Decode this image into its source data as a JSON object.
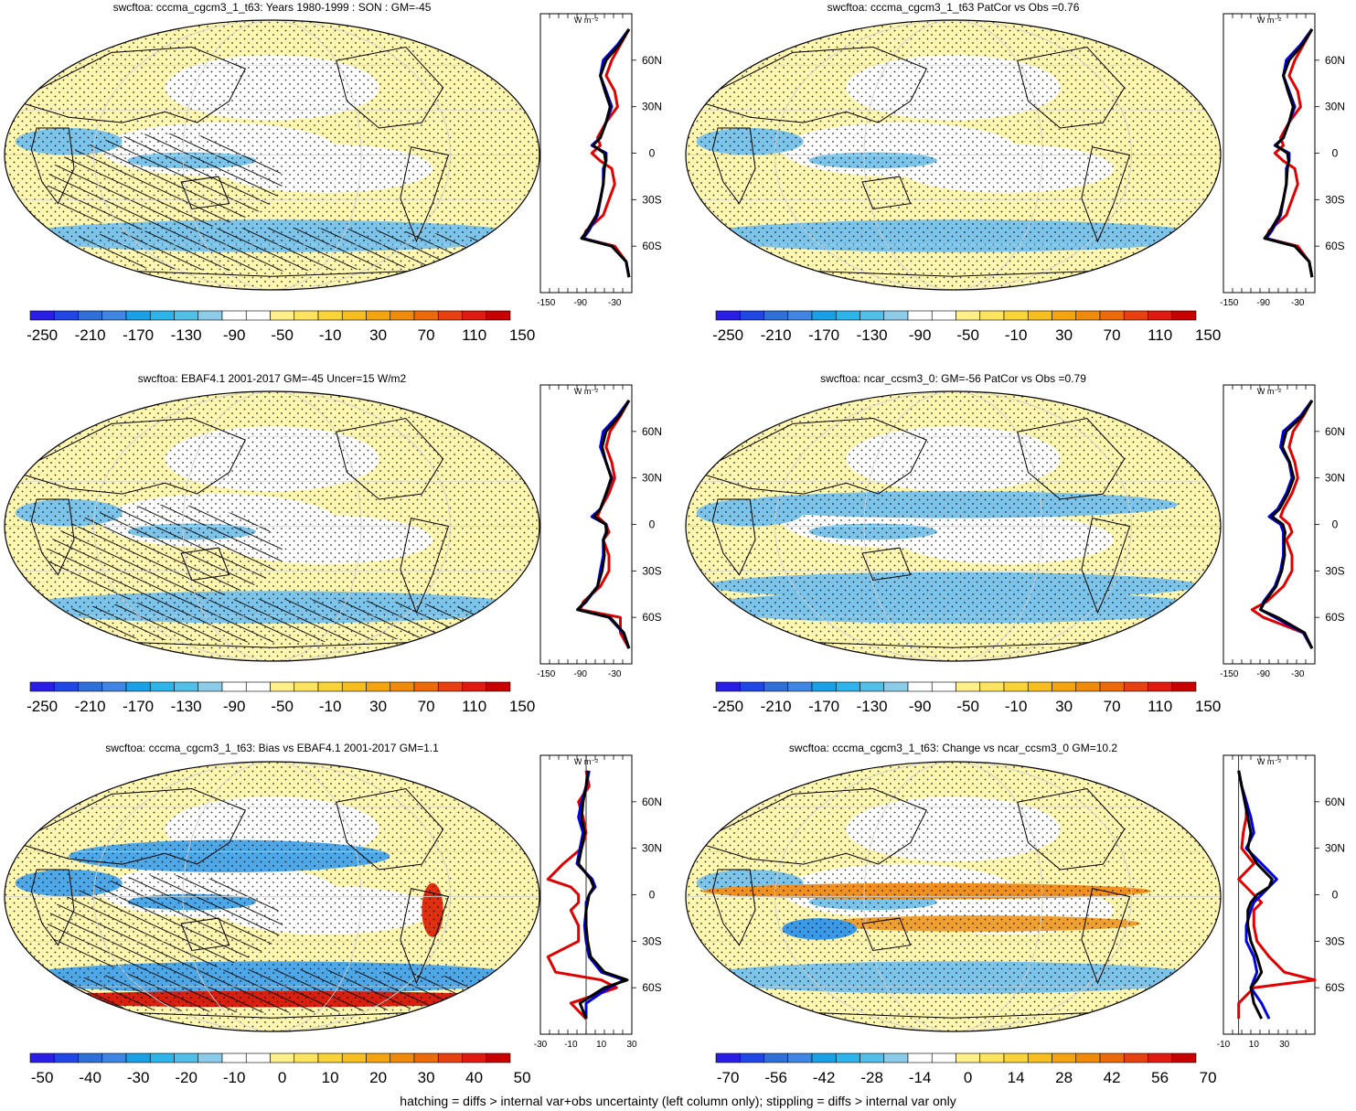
{
  "footnote": "hatching = diffs > internal var+obs uncertainty (left column only); stippling = diffs > internal var only",
  "profile_unit": "W m⁻²",
  "lat_labels": [
    "60N",
    "30N",
    "0",
    "30S",
    "60S"
  ],
  "chart_data": [
    {
      "type": "heatmap",
      "title": "swcftoa: cccma_cgcm3_1_t63: Years 1980-1999 : SON : GM=-45",
      "colorbar_labels": [
        "-250",
        "-210",
        "-170",
        "-130",
        "-90",
        "-50",
        "-10",
        "30",
        "70",
        "110",
        "150"
      ],
      "profile": {
        "x_ticks": [
          "-150",
          "-90",
          "-30"
        ],
        "xlim": [
          -160,
          0
        ],
        "zero_line": false,
        "series": [
          {
            "color": "#e00000",
            "x": [
              -5,
              -20,
              -35,
              -45,
              -30,
              -25,
              -45,
              -60,
              -55,
              -70,
              -55,
              -35,
              -30,
              -40,
              -50,
              -80,
              -85,
              -30,
              -10,
              -5
            ],
            "lat": [
              80,
              70,
              60,
              50,
              40,
              30,
              20,
              10,
              5,
              0,
              -5,
              -10,
              -20,
              -30,
              -40,
              -50,
              -55,
              -60,
              -70,
              -80
            ]
          },
          {
            "color": "#0000e0",
            "x": [
              -5,
              -25,
              -50,
              -55,
              -45,
              -35,
              -45,
              -55,
              -70,
              -45,
              -45,
              -50,
              -50,
              -55,
              -60,
              -75,
              -85,
              -35,
              -10,
              -5
            ],
            "lat": [
              80,
              70,
              60,
              50,
              40,
              30,
              20,
              10,
              5,
              0,
              -5,
              -10,
              -20,
              -30,
              -40,
              -50,
              -55,
              -60,
              -70,
              -80
            ]
          },
          {
            "color": "#000000",
            "x": [
              -5,
              -22,
              -45,
              -55,
              -47,
              -38,
              -45,
              -55,
              -68,
              -48,
              -46,
              -48,
              -50,
              -55,
              -62,
              -78,
              -88,
              -35,
              -10,
              -5
            ],
            "lat": [
              80,
              70,
              60,
              50,
              40,
              30,
              20,
              10,
              5,
              0,
              -5,
              -10,
              -20,
              -30,
              -40,
              -50,
              -55,
              -60,
              -70,
              -80
            ]
          }
        ]
      }
    },
    {
      "type": "heatmap",
      "title": "swcftoa: cccma_cgcm3_1_t63 PatCor vs Obs =0.76",
      "colorbar_labels": [
        "-250",
        "-210",
        "-170",
        "-130",
        "-90",
        "-50",
        "-10",
        "30",
        "70",
        "110",
        "150"
      ],
      "profile": {
        "x_ticks": [
          "-150",
          "-90",
          "-30"
        ],
        "xlim": [
          -160,
          0
        ],
        "zero_line": false,
        "series": [
          {
            "color": "#e00000",
            "x": [
              -5,
              -20,
              -35,
              -45,
              -30,
              -25,
              -45,
              -60,
              -55,
              -70,
              -55,
              -35,
              -30,
              -40,
              -50,
              -80,
              -85,
              -30,
              -10,
              -5
            ],
            "lat": [
              80,
              70,
              60,
              50,
              40,
              30,
              20,
              10,
              5,
              0,
              -5,
              -10,
              -20,
              -30,
              -40,
              -50,
              -55,
              -60,
              -70,
              -80
            ]
          },
          {
            "color": "#0000e0",
            "x": [
              -5,
              -25,
              -50,
              -55,
              -45,
              -35,
              -45,
              -55,
              -70,
              -45,
              -45,
              -50,
              -50,
              -55,
              -60,
              -75,
              -85,
              -35,
              -10,
              -5
            ],
            "lat": [
              80,
              70,
              60,
              50,
              40,
              30,
              20,
              10,
              5,
              0,
              -5,
              -10,
              -20,
              -30,
              -40,
              -50,
              -55,
              -60,
              -70,
              -80
            ]
          },
          {
            "color": "#000000",
            "x": [
              -5,
              -22,
              -45,
              -55,
              -47,
              -38,
              -45,
              -55,
              -68,
              -48,
              -46,
              -48,
              -50,
              -55,
              -62,
              -78,
              -88,
              -35,
              -10,
              -5
            ],
            "lat": [
              80,
              70,
              60,
              50,
              40,
              30,
              20,
              10,
              5,
              0,
              -5,
              -10,
              -20,
              -30,
              -40,
              -50,
              -55,
              -60,
              -70,
              -80
            ]
          }
        ]
      }
    },
    {
      "type": "heatmap",
      "title": "swcftoa: EBAF4.1 2001-2017 GM=-45 Uncer=15 W/m2",
      "colorbar_labels": [
        "-250",
        "-210",
        "-170",
        "-130",
        "-90",
        "-50",
        "-10",
        "30",
        "70",
        "110",
        "150"
      ],
      "profile": {
        "x_ticks": [
          "-150",
          "-90",
          "-30"
        ],
        "xlim": [
          -160,
          0
        ],
        "zero_line": false,
        "series": [
          {
            "color": "#e00000",
            "x": [
              -5,
              -20,
              -38,
              -45,
              -35,
              -30,
              -40,
              -55,
              -60,
              -45,
              -40,
              -50,
              -40,
              -40,
              -55,
              -85,
              -90,
              -20,
              -20,
              -5
            ],
            "lat": [
              80,
              70,
              60,
              50,
              40,
              30,
              20,
              10,
              5,
              0,
              -5,
              -10,
              -20,
              -30,
              -40,
              -50,
              -55,
              -60,
              -70,
              -80
            ]
          },
          {
            "color": "#0000e0",
            "x": [
              -5,
              -25,
              -50,
              -55,
              -45,
              -35,
              -45,
              -55,
              -70,
              -45,
              -45,
              -50,
              -50,
              -55,
              -60,
              -80,
              -95,
              -40,
              -15,
              -5
            ],
            "lat": [
              80,
              70,
              60,
              50,
              40,
              30,
              20,
              10,
              5,
              0,
              -5,
              -10,
              -20,
              -30,
              -40,
              -50,
              -55,
              -60,
              -70,
              -80
            ]
          },
          {
            "color": "#000000",
            "x": [
              -5,
              -22,
              -45,
              -52,
              -45,
              -36,
              -45,
              -55,
              -66,
              -46,
              -44,
              -50,
              -48,
              -52,
              -60,
              -82,
              -95,
              -38,
              -14,
              -5
            ],
            "lat": [
              80,
              70,
              60,
              50,
              40,
              30,
              20,
              10,
              5,
              0,
              -5,
              -10,
              -20,
              -30,
              -40,
              -50,
              -55,
              -60,
              -70,
              -80
            ]
          }
        ]
      }
    },
    {
      "type": "heatmap",
      "title": "swcftoa: ncar_ccsm3_0: GM=-56 PatCor vs Obs =0.79",
      "colorbar_labels": [
        "-250",
        "-210",
        "-170",
        "-130",
        "-90",
        "-50",
        "-10",
        "30",
        "70",
        "110",
        "150"
      ],
      "profile": {
        "x_ticks": [
          "-150",
          "-90",
          "-30"
        ],
        "xlim": [
          -160,
          0
        ],
        "zero_line": false,
        "series": [
          {
            "color": "#e00000",
            "x": [
              -5,
              -20,
              -38,
              -45,
              -35,
              -30,
              -40,
              -55,
              -60,
              -45,
              -40,
              -50,
              -40,
              -40,
              -55,
              -85,
              -110,
              -90,
              -20,
              -5
            ],
            "lat": [
              80,
              70,
              60,
              50,
              40,
              30,
              20,
              10,
              5,
              0,
              -5,
              -10,
              -20,
              -30,
              -40,
              -50,
              -55,
              -60,
              -70,
              -80
            ]
          },
          {
            "color": "#0000e0",
            "x": [
              -5,
              -25,
              -55,
              -60,
              -45,
              -40,
              -50,
              -65,
              -80,
              -60,
              -55,
              -55,
              -55,
              -60,
              -70,
              -90,
              -95,
              -70,
              -20,
              -5
            ],
            "lat": [
              80,
              70,
              60,
              50,
              40,
              30,
              20,
              10,
              5,
              0,
              -5,
              -10,
              -20,
              -30,
              -40,
              -50,
              -55,
              -60,
              -70,
              -80
            ]
          },
          {
            "color": "#000000",
            "x": [
              -5,
              -22,
              -50,
              -57,
              -44,
              -37,
              -47,
              -62,
              -75,
              -56,
              -52,
              -54,
              -53,
              -58,
              -68,
              -88,
              -95,
              -65,
              -18,
              -5
            ],
            "lat": [
              80,
              70,
              60,
              50,
              40,
              30,
              20,
              10,
              5,
              0,
              -5,
              -10,
              -20,
              -30,
              -40,
              -50,
              -55,
              -60,
              -70,
              -80
            ]
          }
        ]
      }
    },
    {
      "type": "heatmap",
      "title": "swcftoa: cccma_cgcm3_1_t63: Bias vs EBAF4.1 2001-2017  GM=1.1",
      "colorbar_labels": [
        "-50",
        "-40",
        "-30",
        "-20",
        "-10",
        "0",
        "10",
        "20",
        "30",
        "40",
        "50"
      ],
      "profile": {
        "x_ticks": [
          "-30",
          "-10",
          "10",
          "30"
        ],
        "xlim": [
          -30,
          30
        ],
        "zero_line": true,
        "series": [
          {
            "color": "#e00000",
            "x": [
              0,
              2,
              -5,
              -2,
              0,
              -3,
              -15,
              -25,
              -10,
              -5,
              -5,
              -10,
              -5,
              -5,
              -25,
              -20,
              10,
              20,
              -10,
              0
            ],
            "lat": [
              80,
              70,
              60,
              50,
              40,
              30,
              20,
              10,
              5,
              0,
              -5,
              -10,
              -20,
              -30,
              -40,
              -50,
              -55,
              -60,
              -70,
              -80
            ]
          },
          {
            "color": "#0000e0",
            "x": [
              2,
              0,
              -3,
              -5,
              -2,
              -4,
              -6,
              4,
              6,
              2,
              0,
              0,
              -1,
              0,
              2,
              10,
              25,
              15,
              0,
              0
            ],
            "lat": [
              80,
              70,
              60,
              50,
              40,
              30,
              20,
              10,
              5,
              0,
              -5,
              -10,
              -20,
              -30,
              -40,
              -50,
              -55,
              -60,
              -70,
              -80
            ]
          },
          {
            "color": "#000000",
            "x": [
              1,
              0,
              -2,
              -3,
              -1,
              -3,
              -5,
              3,
              5,
              2,
              1,
              0,
              0,
              1,
              3,
              12,
              27,
              12,
              -4,
              0
            ],
            "lat": [
              80,
              70,
              60,
              50,
              40,
              30,
              20,
              10,
              5,
              0,
              -5,
              -10,
              -20,
              -30,
              -40,
              -50,
              -55,
              -60,
              -70,
              -80
            ]
          }
        ]
      }
    },
    {
      "type": "heatmap",
      "title": "swcftoa: cccma_cgcm3_1_t63: Change vs ncar_ccsm3_0 GM=10.2",
      "colorbar_labels": [
        "-70",
        "-56",
        "-42",
        "-28",
        "-14",
        "0",
        "14",
        "28",
        "42",
        "56",
        "70"
      ],
      "profile": {
        "x_ticks": [
          "-10",
          "10",
          "30"
        ],
        "xlim": [
          -10,
          50
        ],
        "zero_line": true,
        "series": [
          {
            "color": "#e00000",
            "x": [
              0,
              2,
              5,
              5,
              3,
              2,
              10,
              0,
              5,
              10,
              15,
              10,
              10,
              12,
              20,
              30,
              50,
              10,
              0,
              0
            ],
            "lat": [
              80,
              70,
              60,
              50,
              40,
              30,
              20,
              10,
              5,
              0,
              -5,
              -10,
              -20,
              -30,
              -40,
              -50,
              -55,
              -60,
              -70,
              -80
            ]
          },
          {
            "color": "#0000e0",
            "x": [
              0,
              2,
              5,
              8,
              10,
              5,
              15,
              25,
              20,
              15,
              10,
              8,
              5,
              5,
              10,
              12,
              10,
              8,
              15,
              20
            ],
            "lat": [
              80,
              70,
              60,
              50,
              40,
              30,
              20,
              10,
              5,
              0,
              -5,
              -10,
              -20,
              -30,
              -40,
              -50,
              -55,
              -60,
              -70,
              -80
            ]
          },
          {
            "color": "#000000",
            "x": [
              0,
              2,
              4,
              6,
              8,
              6,
              12,
              22,
              20,
              12,
              8,
              6,
              6,
              8,
              12,
              15,
              12,
              8,
              10,
              15
            ],
            "lat": [
              80,
              70,
              60,
              50,
              40,
              30,
              20,
              10,
              5,
              0,
              -5,
              -10,
              -20,
              -30,
              -40,
              -50,
              -55,
              -60,
              -70,
              -80
            ]
          }
        ]
      }
    }
  ]
}
